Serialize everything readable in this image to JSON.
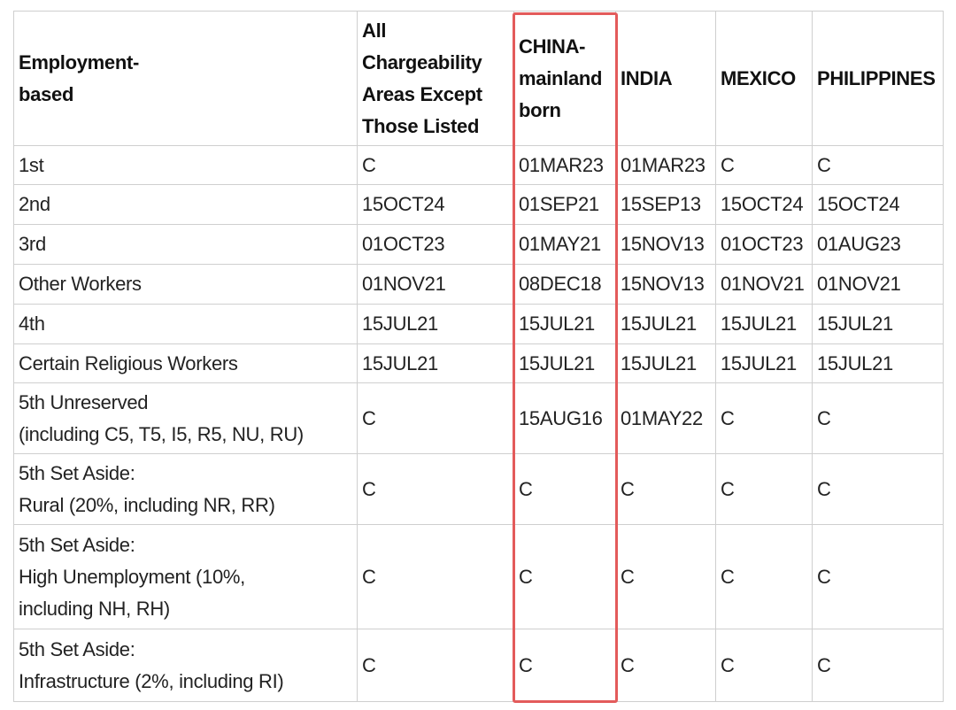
{
  "table": {
    "header": [
      [
        "Employment-",
        "based"
      ],
      [
        "All",
        "Chargeability",
        "Areas Except",
        "Those Listed"
      ],
      [
        "CHINA-",
        "mainland",
        "born"
      ],
      [
        "INDIA"
      ],
      [
        "MEXICO"
      ],
      [
        "PHILIPPINES"
      ]
    ],
    "rows": [
      [
        [
          "1st"
        ],
        [
          "C"
        ],
        [
          "01MAR23"
        ],
        [
          "01MAR23"
        ],
        [
          "C"
        ],
        [
          "C"
        ]
      ],
      [
        [
          "2nd"
        ],
        [
          "15OCT24"
        ],
        [
          "01SEP21"
        ],
        [
          "15SEP13"
        ],
        [
          "15OCT24"
        ],
        [
          "15OCT24"
        ]
      ],
      [
        [
          "3rd"
        ],
        [
          "01OCT23"
        ],
        [
          "01MAY21"
        ],
        [
          "15NOV13"
        ],
        [
          "01OCT23"
        ],
        [
          "01AUG23"
        ]
      ],
      [
        [
          "Other Workers"
        ],
        [
          "01NOV21"
        ],
        [
          "08DEC18"
        ],
        [
          "15NOV13"
        ],
        [
          "01NOV21"
        ],
        [
          "01NOV21"
        ]
      ],
      [
        [
          "4th"
        ],
        [
          "15JUL21"
        ],
        [
          "15JUL21"
        ],
        [
          "15JUL21"
        ],
        [
          "15JUL21"
        ],
        [
          "15JUL21"
        ]
      ],
      [
        [
          "Certain Religious Workers"
        ],
        [
          "15JUL21"
        ],
        [
          "15JUL21"
        ],
        [
          "15JUL21"
        ],
        [
          "15JUL21"
        ],
        [
          "15JUL21"
        ]
      ],
      [
        [
          "5th Unreserved",
          "(including C5, T5, I5, R5, NU, RU)"
        ],
        [
          "C"
        ],
        [
          "15AUG16"
        ],
        [
          "01MAY22"
        ],
        [
          "C"
        ],
        [
          "C"
        ]
      ],
      [
        [
          "5th Set Aside:",
          "Rural (20%, including NR, RR)"
        ],
        [
          "C"
        ],
        [
          "C"
        ],
        [
          "C"
        ],
        [
          "C"
        ],
        [
          "C"
        ]
      ],
      [
        [
          "5th Set Aside:",
          "High Unemployment (10%,",
          "including NH, RH)"
        ],
        [
          "C"
        ],
        [
          "C"
        ],
        [
          "C"
        ],
        [
          "C"
        ],
        [
          "C"
        ]
      ],
      [
        [
          "5th Set Aside:",
          "Infrastructure (2%, including RI)"
        ],
        [
          "C"
        ],
        [
          "C"
        ],
        [
          "C"
        ],
        [
          "C"
        ],
        [
          "C"
        ]
      ]
    ]
  }
}
